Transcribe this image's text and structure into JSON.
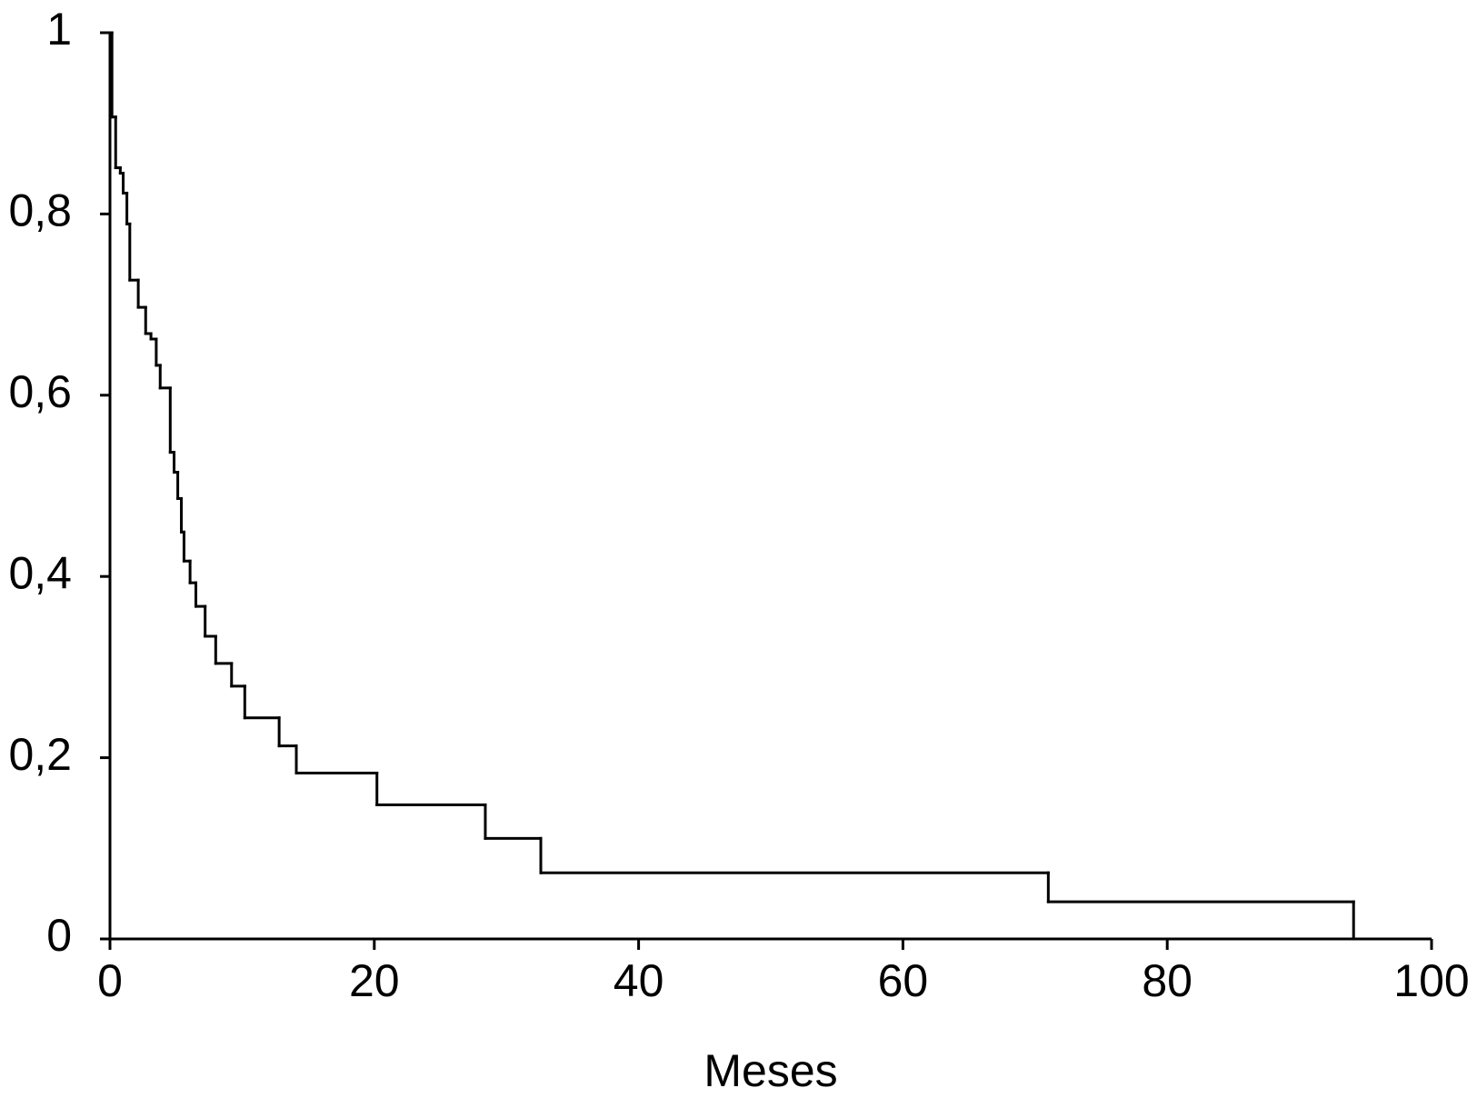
{
  "chart_data": {
    "type": "step",
    "xlabel": "Meses",
    "color": "#000000",
    "x": [
      0,
      0.15,
      0.43,
      0.78,
      1.0,
      1.28,
      1.5,
      2.14,
      2.7,
      3.1,
      3.5,
      3.8,
      4.56,
      4.85,
      5.13,
      5.4,
      5.6,
      6.06,
      6.5,
      7.2,
      8.0,
      9.2,
      10.2,
      12.8,
      14.1,
      20.2,
      28.4,
      32.6,
      71.0,
      94.1
    ],
    "values": [
      1,
      0.907,
      0.851,
      0.845,
      0.823,
      0.789,
      0.727,
      0.697,
      0.668,
      0.662,
      0.633,
      0.608,
      0.537,
      0.515,
      0.486,
      0.449,
      0.417,
      0.393,
      0.367,
      0.334,
      0.304,
      0.279,
      0.244,
      0.213,
      0.183,
      0.148,
      0.111,
      0.073,
      0.041,
      0
    ],
    "xlim": [
      0,
      100
    ],
    "xticks": [
      0,
      20,
      40,
      60,
      80,
      100
    ],
    "ylim": [
      0,
      1
    ],
    "yticks": [
      0,
      {
        "value": 0.2,
        "label": "0,2"
      },
      {
        "value": 0.4,
        "label": "0,4"
      },
      {
        "value": 0.6,
        "label": "0,6"
      },
      {
        "value": 0.8,
        "label": "0,8"
      },
      1
    ]
  }
}
